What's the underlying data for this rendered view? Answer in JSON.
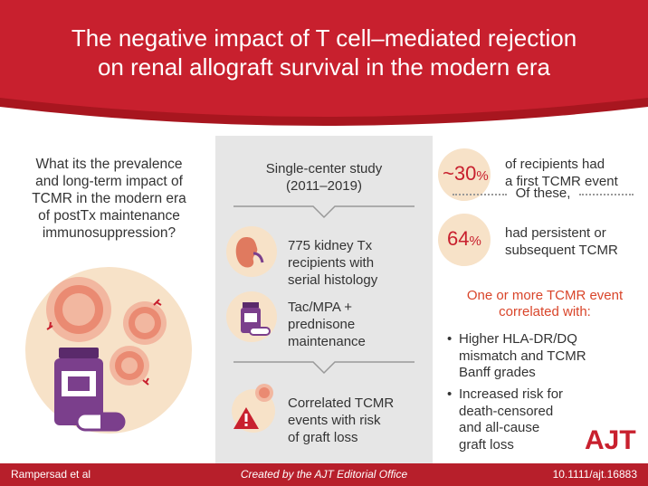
{
  "header": {
    "title_line1": "The negative impact of T cell–mediated rejection",
    "title_line2": "on renal allograft survival in the modern era"
  },
  "question": {
    "line1": "What its the prevalence",
    "line2": "and long-term impact of",
    "line3": "TCMR in the modern era",
    "line4": "of postTx maintenance",
    "line5": "immunosuppression?"
  },
  "study": {
    "line1": "Single-center study",
    "line2": "(2011–2019)"
  },
  "mid_items": [
    {
      "l1": "775 kidney Tx",
      "l2": "recipients with",
      "l3": "serial histology"
    },
    {
      "l1": "Tac/MPA +",
      "l2": "prednisone",
      "l3": "maintenance"
    },
    {
      "l1": "Correlated TCMR",
      "l2": "events with risk",
      "l3": "of graft loss"
    }
  ],
  "stats": [
    {
      "number": "~30",
      "unit": "%",
      "l1": "of recipients had",
      "l2": "a first TCMR event"
    },
    {
      "number": "64",
      "unit": "%",
      "l1": "had persistent or",
      "l2": "subsequent TCMR"
    }
  ],
  "of_these": "Of these,",
  "correlated": {
    "l1": "One or more TCMR event",
    "l2": "correlated with:"
  },
  "bullets": [
    {
      "l1": "Higher HLA-DR/DQ",
      "l2": "mismatch and TCMR",
      "l3": "Banff grades"
    },
    {
      "l1": "Increased risk for",
      "l2": "death-censored",
      "l3": "and all-cause",
      "l4": "graft loss"
    }
  ],
  "logo": "AJT",
  "footer": {
    "left": "Rampersad et al",
    "center": "Created by the AJT Editorial Office",
    "right": "10.1111/ajt.16883"
  },
  "colors": {
    "brand_red": "#c8202e",
    "peach": "#f7e2c8",
    "purple": "#7b3f8c",
    "orange_red": "#d9452a"
  }
}
